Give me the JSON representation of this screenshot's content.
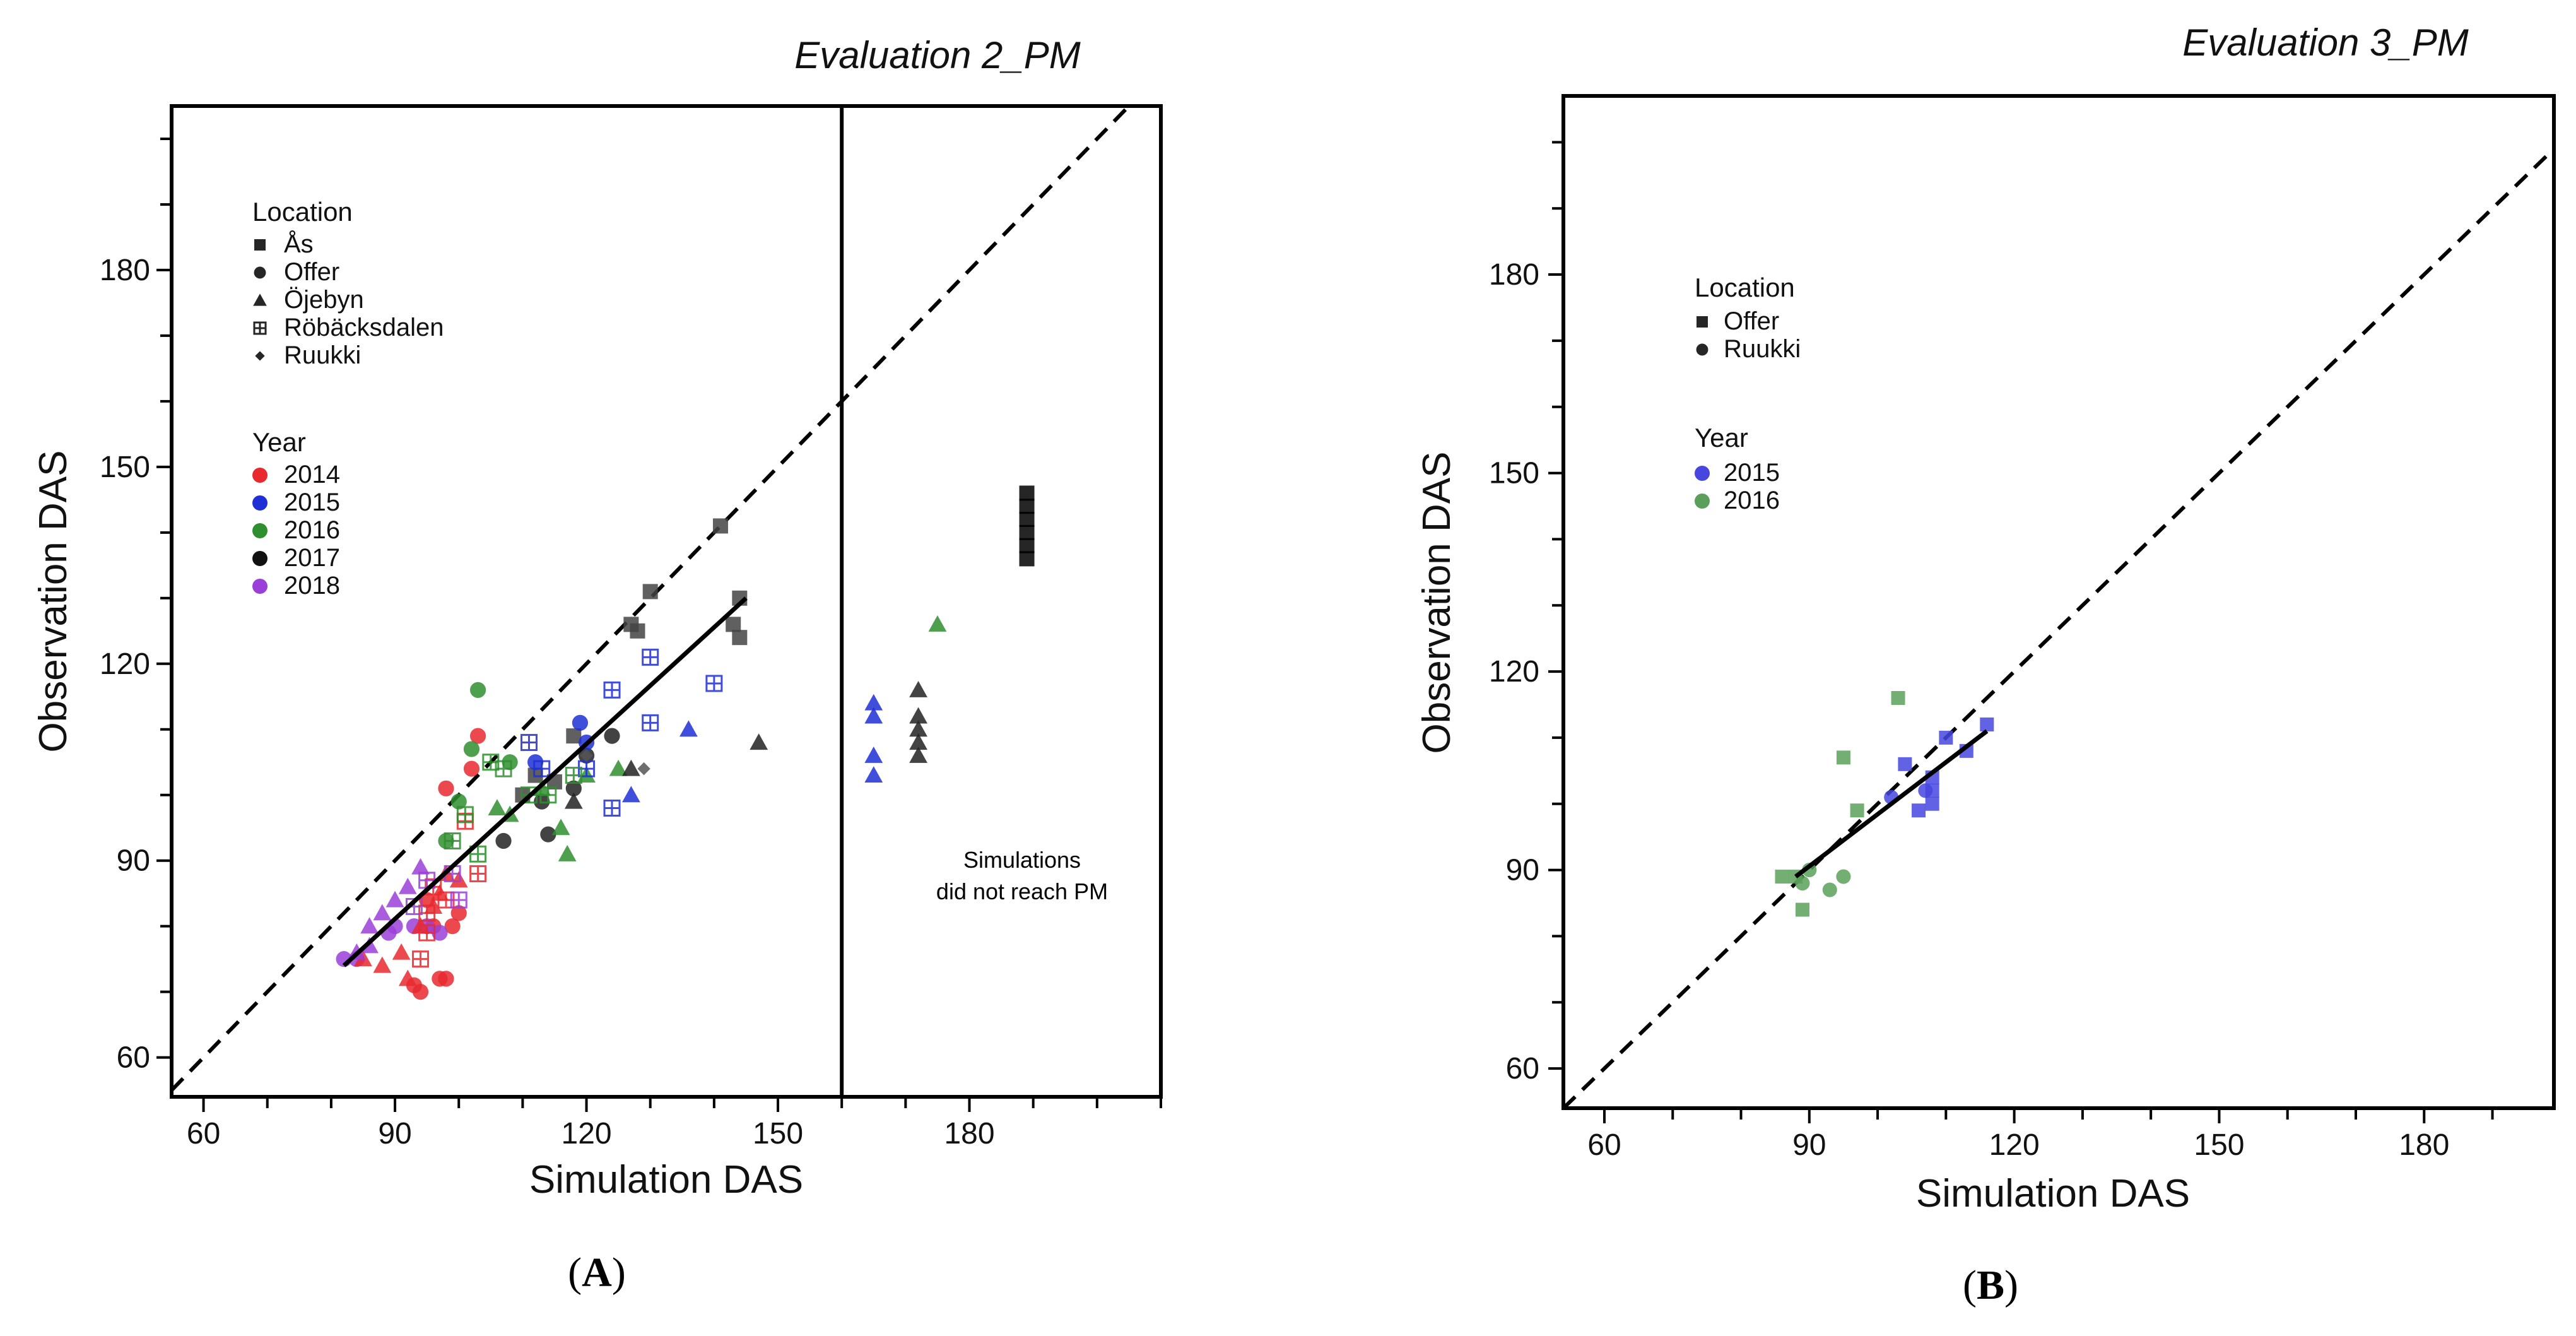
{
  "chart_data": [
    {
      "type": "scatter",
      "panel": "A",
      "title": "Evaluation 2_PM",
      "caption_label": "A",
      "xlabel": "Simulation DAS",
      "ylabel": "Observation DAS",
      "xlim": [
        55,
        210
      ],
      "ylim": [
        54,
        205
      ],
      "xticks": [
        60,
        90,
        120,
        150,
        180
      ],
      "yticks": [
        60,
        90,
        120,
        150,
        180
      ],
      "divider_x": 160,
      "legend_location_title": "Location",
      "legend_location": [
        {
          "label": "Ås",
          "marker": "square"
        },
        {
          "label": "Offer",
          "marker": "circle"
        },
        {
          "label": "Öjebyn",
          "marker": "triangle"
        },
        {
          "label": "Röbäcksdalen",
          "marker": "boxcross"
        },
        {
          "label": "Ruukki",
          "marker": "diamond"
        }
      ],
      "legend_year_title": "Year",
      "legend_year": [
        {
          "label": "2014",
          "color": "#e8292f"
        },
        {
          "label": "2015",
          "color": "#1f2fd6"
        },
        {
          "label": "2016",
          "color": "#2f8f2f"
        },
        {
          "label": "2017",
          "color": "#111111"
        },
        {
          "label": "2018",
          "color": "#9b3fd9"
        }
      ],
      "annotation_lines": [
        "Simulations",
        "did not reach PM"
      ],
      "one_to_one_line": true,
      "fit_line": [
        [
          82,
          74
        ],
        [
          145,
          130
        ]
      ],
      "series": [
        {
          "name": "Ås 2017",
          "marker": "square",
          "color": "#444444",
          "points": [
            [
              141,
              141
            ],
            [
              130,
              131
            ],
            [
              127,
              126
            ],
            [
              128,
              125
            ],
            [
              144,
              130
            ],
            [
              144,
              124
            ],
            [
              143,
              126
            ],
            [
              118,
              109
            ],
            [
              112,
              103
            ],
            [
              110,
              100
            ],
            [
              115,
              102
            ]
          ]
        },
        {
          "name": "Ås 2017 (no PM)",
          "marker": "square",
          "color": "#000000",
          "points": [
            [
              189,
              146
            ],
            [
              189,
              144
            ],
            [
              189,
              142
            ],
            [
              189,
              140
            ],
            [
              189,
              138
            ],
            [
              189,
              136
            ]
          ]
        },
        {
          "name": "Offer 2014",
          "marker": "circle",
          "color": "#e8292f",
          "points": [
            [
              103,
              109
            ],
            [
              102,
              104
            ],
            [
              98,
              101
            ],
            [
              95,
              84
            ],
            [
              96,
              80
            ],
            [
              99,
              80
            ],
            [
              100,
              82
            ],
            [
              97,
              72
            ],
            [
              98,
              72
            ],
            [
              93,
              71
            ],
            [
              94,
              70
            ]
          ]
        },
        {
          "name": "Offer 2016",
          "marker": "circle",
          "color": "#2f8f2f",
          "points": [
            [
              103,
              116
            ],
            [
              102,
              107
            ],
            [
              100,
              99
            ],
            [
              98,
              93
            ],
            [
              108,
              105
            ]
          ]
        },
        {
          "name": "Offer 2017",
          "marker": "circle",
          "color": "#222222",
          "points": [
            [
              114,
              94
            ],
            [
              107,
              93
            ],
            [
              113,
              99
            ],
            [
              118,
              101
            ],
            [
              124,
              109
            ],
            [
              120,
              106
            ]
          ]
        },
        {
          "name": "Offer 2015",
          "marker": "circle",
          "color": "#1f2fd6",
          "points": [
            [
              112,
              105
            ],
            [
              119,
              111
            ],
            [
              120,
              108
            ]
          ]
        },
        {
          "name": "Offer 2018",
          "marker": "circle",
          "color": "#9b3fd9",
          "points": [
            [
              82,
              75
            ],
            [
              84,
              75
            ],
            [
              89,
              79
            ],
            [
              90,
              80
            ],
            [
              93,
              80
            ],
            [
              95,
              80
            ],
            [
              97,
              79
            ]
          ]
        },
        {
          "name": "Öjebyn 2014",
          "marker": "triangle",
          "color": "#e8292f",
          "points": [
            [
              85,
              75
            ],
            [
              88,
              74
            ],
            [
              91,
              76
            ],
            [
              92,
              72
            ],
            [
              94,
              80
            ],
            [
              96,
              83
            ],
            [
              97,
              85
            ],
            [
              98,
              88
            ],
            [
              100,
              87
            ]
          ]
        },
        {
          "name": "Öjebyn 2015",
          "marker": "triangle",
          "color": "#1f2fd6",
          "points": [
            [
              127,
              100
            ],
            [
              136,
              110
            ],
            [
              165,
              114
            ],
            [
              165,
              112
            ],
            [
              165,
              106
            ],
            [
              165,
              103
            ]
          ]
        },
        {
          "name": "Öjebyn 2016",
          "marker": "triangle",
          "color": "#2f8f2f",
          "points": [
            [
              106,
              98
            ],
            [
              108,
              97
            ],
            [
              113,
              101
            ],
            [
              116,
              95
            ],
            [
              117,
              91
            ],
            [
              120,
              103
            ],
            [
              125,
              104
            ],
            [
              175,
              126
            ]
          ]
        },
        {
          "name": "Öjebyn 2017",
          "marker": "triangle",
          "color": "#222222",
          "points": [
            [
              127,
              104
            ],
            [
              147,
              108
            ],
            [
              118,
              99
            ],
            [
              172,
              116
            ],
            [
              172,
              112
            ],
            [
              172,
              110
            ],
            [
              172,
              108
            ],
            [
              172,
              106
            ]
          ]
        },
        {
          "name": "Öjebyn 2018",
          "marker": "triangle",
          "color": "#9b3fd9",
          "points": [
            [
              86,
              80
            ],
            [
              88,
              82
            ],
            [
              90,
              84
            ],
            [
              92,
              86
            ],
            [
              94,
              89
            ],
            [
              86,
              77
            ],
            [
              84,
              76
            ]
          ]
        },
        {
          "name": "Röbäcksdalen 2014",
          "marker": "boxcross",
          "color": "#e8292f",
          "points": [
            [
              101,
              96
            ],
            [
              103,
              88
            ],
            [
              98,
              84
            ],
            [
              96,
              86
            ],
            [
              95,
              82
            ],
            [
              95,
              79
            ],
            [
              94,
              75
            ]
          ]
        },
        {
          "name": "Röbäcksdalen 2015",
          "marker": "boxcross",
          "color": "#1f2fd6",
          "points": [
            [
              111,
              108
            ],
            [
              113,
              104
            ],
            [
              120,
              104
            ],
            [
              124,
              116
            ],
            [
              124,
              98
            ],
            [
              130,
              121
            ],
            [
              130,
              111
            ],
            [
              140,
              117
            ]
          ]
        },
        {
          "name": "Röbäcksdalen 2016",
          "marker": "boxcross",
          "color": "#2f8f2f",
          "points": [
            [
              99,
              93
            ],
            [
              101,
              97
            ],
            [
              103,
              91
            ],
            [
              105,
              105
            ],
            [
              107,
              104
            ],
            [
              111,
              100
            ],
            [
              114,
              100
            ],
            [
              118,
              103
            ]
          ]
        },
        {
          "name": "Röbäcksdalen 2018",
          "marker": "boxcross",
          "color": "#9b3fd9",
          "points": [
            [
              93,
              83
            ],
            [
              95,
              87
            ],
            [
              100,
              84
            ],
            [
              99,
              88
            ]
          ]
        },
        {
          "name": "Ruukki 2017",
          "marker": "diamond",
          "color": "#555555",
          "points": [
            [
              129,
              104
            ],
            [
              120,
              106
            ]
          ]
        }
      ]
    },
    {
      "type": "scatter",
      "panel": "B",
      "title": "Evaluation 3_PM",
      "caption_label": "B",
      "xlabel": "Simulation DAS",
      "ylabel": "Observation DAS",
      "xlim": [
        54,
        199
      ],
      "ylim": [
        54,
        207
      ],
      "xticks": [
        60,
        90,
        120,
        150,
        180
      ],
      "yticks": [
        60,
        90,
        120,
        150,
        180
      ],
      "legend_location_title": "Location",
      "legend_location": [
        {
          "label": "Offer",
          "marker": "square"
        },
        {
          "label": "Ruukki",
          "marker": "circle"
        }
      ],
      "legend_year_title": "Year",
      "legend_year": [
        {
          "label": "2015",
          "color": "#4747e0"
        },
        {
          "label": "2016",
          "color": "#5aa05a"
        }
      ],
      "one_to_one_line": true,
      "fit_line": [
        [
          88,
          89
        ],
        [
          116,
          111
        ]
      ],
      "series": [
        {
          "name": "Offer 2016",
          "marker": "square",
          "color": "#5aa05a",
          "points": [
            [
              86,
              89
            ],
            [
              88,
              89
            ],
            [
              89,
              84
            ],
            [
              95,
              107
            ],
            [
              97,
              99
            ],
            [
              103,
              116
            ]
          ]
        },
        {
          "name": "Offer 2015",
          "marker": "square",
          "color": "#4747e0",
          "points": [
            [
              104,
              106
            ],
            [
              106,
              99
            ],
            [
              108,
              102
            ],
            [
              108,
              104
            ],
            [
              108,
              100
            ],
            [
              110,
              110
            ],
            [
              113,
              108
            ],
            [
              116,
              112
            ]
          ]
        },
        {
          "name": "Ruukki 2016",
          "marker": "circle",
          "color": "#5aa05a",
          "points": [
            [
              89,
              88
            ],
            [
              93,
              87
            ],
            [
              95,
              89
            ],
            [
              90,
              90
            ]
          ]
        },
        {
          "name": "Ruukki 2015",
          "marker": "circle",
          "color": "#4747e0",
          "points": [
            [
              102,
              101
            ],
            [
              107,
              102
            ]
          ]
        }
      ]
    }
  ]
}
